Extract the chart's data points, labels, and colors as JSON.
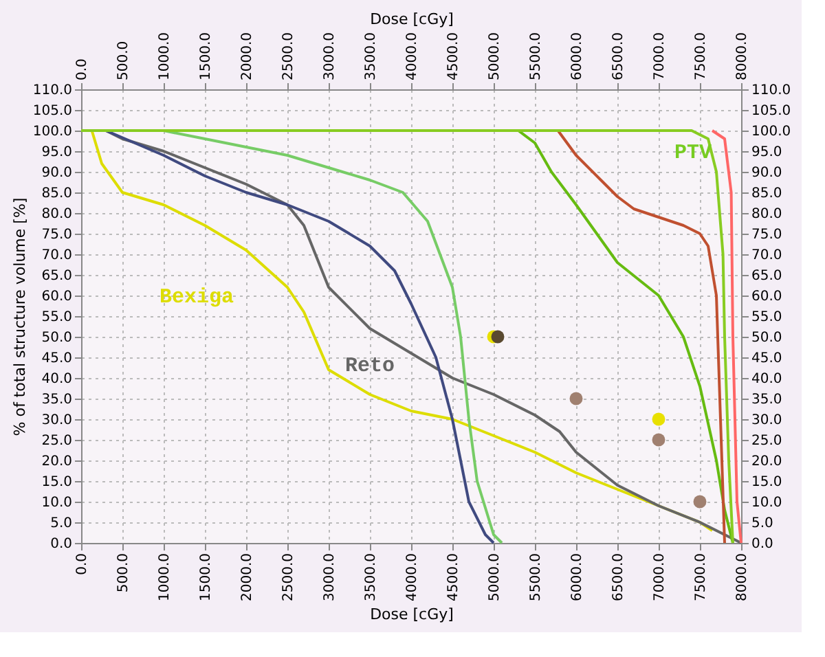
{
  "chart_data": {
    "type": "line",
    "xlabel": "Dose [cGy]",
    "x2label": "Dose [cGy]",
    "ylabel": "% of total structure volume [%]",
    "xlim": [
      0,
      8000
    ],
    "x2lim": [
      0,
      8000
    ],
    "ylim": [
      0,
      110
    ],
    "y2lim": [
      0,
      110
    ],
    "xticks": [
      {
        "value": 0,
        "label": "0.0"
      },
      {
        "value": 500,
        "label": "500.0"
      },
      {
        "value": 1000,
        "label": "1000.0"
      },
      {
        "value": 1500,
        "label": "1500.0"
      },
      {
        "value": 2000,
        "label": "2000.0"
      },
      {
        "value": 2500,
        "label": "2500.0"
      },
      {
        "value": 3000,
        "label": "3000.0"
      },
      {
        "value": 3500,
        "label": "3500.0"
      },
      {
        "value": 4000,
        "label": "4000.0"
      },
      {
        "value": 4500,
        "label": "4500.0"
      },
      {
        "value": 5000,
        "label": "5000.0"
      },
      {
        "value": 5500,
        "label": "5500.0"
      },
      {
        "value": 6000,
        "label": "6000.0"
      },
      {
        "value": 6500,
        "label": "6500.0"
      },
      {
        "value": 7000,
        "label": "7000.0"
      },
      {
        "value": 7500,
        "label": "7500.0"
      },
      {
        "value": 8000,
        "label": "8000.0"
      }
    ],
    "x2ticks": [
      {
        "value": 0,
        "label": "0.0"
      },
      {
        "value": 500,
        "label": "500.0"
      },
      {
        "value": 1000,
        "label": "1000.0"
      },
      {
        "value": 1500,
        "label": "1500.0"
      },
      {
        "value": 2000,
        "label": "2000.0"
      },
      {
        "value": 2500,
        "label": "2500.0"
      },
      {
        "value": 3000,
        "label": "3000.0"
      },
      {
        "value": 3500,
        "label": "3500.0"
      },
      {
        "value": 4000,
        "label": "4000.0"
      },
      {
        "value": 4500,
        "label": "4500.0"
      },
      {
        "value": 5000,
        "label": "5000.0"
      },
      {
        "value": 5500,
        "label": "5500.0"
      },
      {
        "value": 6000,
        "label": "6000.0"
      },
      {
        "value": 6500,
        "label": "6500.0"
      },
      {
        "value": 7000,
        "label": "7000.0"
      },
      {
        "value": 7500,
        "label": "7500.0"
      },
      {
        "value": 8000,
        "label": "8000.0"
      }
    ],
    "yticks": [
      {
        "value": 0,
        "label": "0.0"
      },
      {
        "value": 5,
        "label": "5.0"
      },
      {
        "value": 10,
        "label": "10.0"
      },
      {
        "value": 15,
        "label": "15.0"
      },
      {
        "value": 20,
        "label": "20.0"
      },
      {
        "value": 25,
        "label": "25.0"
      },
      {
        "value": 30,
        "label": "30.0"
      },
      {
        "value": 35,
        "label": "35.0"
      },
      {
        "value": 40,
        "label": "40.0"
      },
      {
        "value": 45,
        "label": "45.0"
      },
      {
        "value": 50,
        "label": "50.0"
      },
      {
        "value": 55,
        "label": "55.0"
      },
      {
        "value": 60,
        "label": "60.0"
      },
      {
        "value": 65,
        "label": "65.0"
      },
      {
        "value": 70,
        "label": "70.0"
      },
      {
        "value": 75,
        "label": "75.0"
      },
      {
        "value": 80,
        "label": "80.0"
      },
      {
        "value": 85,
        "label": "85.0"
      },
      {
        "value": 90,
        "label": "90.0"
      },
      {
        "value": 95,
        "label": "95.0"
      },
      {
        "value": 100,
        "label": "100.0"
      },
      {
        "value": 105,
        "label": "105.0"
      },
      {
        "value": 110,
        "label": "110.0"
      }
    ],
    "y2ticks": [
      {
        "value": 0,
        "label": "0.0"
      },
      {
        "value": 5,
        "label": "5.0"
      },
      {
        "value": 10,
        "label": "10.0"
      },
      {
        "value": 15,
        "label": "15.0"
      },
      {
        "value": 20,
        "label": "20.0"
      },
      {
        "value": 25,
        "label": "25.0"
      },
      {
        "value": 30,
        "label": "30.0"
      },
      {
        "value": 35,
        "label": "35.0"
      },
      {
        "value": 40,
        "label": "40.0"
      },
      {
        "value": 45,
        "label": "45.0"
      },
      {
        "value": 50,
        "label": "50.0"
      },
      {
        "value": 55,
        "label": "55.0"
      },
      {
        "value": 60,
        "label": "60.0"
      },
      {
        "value": 65,
        "label": "65.0"
      },
      {
        "value": 70,
        "label": "70.0"
      },
      {
        "value": 75,
        "label": "75.0"
      },
      {
        "value": 80,
        "label": "80.0"
      },
      {
        "value": 85,
        "label": "85.0"
      },
      {
        "value": 90,
        "label": "90.0"
      },
      {
        "value": 95,
        "label": "95.0"
      },
      {
        "value": 100,
        "label": "100.0"
      },
      {
        "value": 105,
        "label": "105.0"
      },
      {
        "value": 110,
        "label": "110.0"
      }
    ],
    "grid": true,
    "legend": false,
    "marker": "none",
    "line_style": "solid",
    "series": [
      {
        "color": "#dddd00",
        "x": [
          0,
          130,
          250,
          500,
          1000,
          1500,
          2000,
          2500,
          2700,
          3000,
          3500,
          4000,
          4500,
          5000,
          5500,
          6000,
          6500,
          7000,
          7500,
          7650
        ],
        "values": [
          100,
          100,
          92,
          85,
          82,
          77,
          71,
          62,
          56,
          42,
          36,
          32,
          30,
          26,
          22,
          17,
          13,
          9,
          5,
          3
        ]
      },
      {
        "color": "#666666",
        "x": [
          0,
          300,
          500,
          1000,
          1500,
          2000,
          2500,
          2700,
          3000,
          3500,
          4000,
          4500,
          5000,
          5500,
          5800,
          6000,
          6500,
          7000,
          7500,
          8000
        ],
        "values": [
          100,
          100,
          98,
          95,
          91,
          87,
          82,
          77,
          62,
          52,
          46,
          40,
          36,
          31,
          27,
          22,
          14,
          9,
          5,
          0
        ]
      },
      {
        "color": "#404a80",
        "x": [
          0,
          300,
          1000,
          1500,
          2000,
          2500,
          3000,
          3500,
          3800,
          4000,
          4300,
          4500,
          4700,
          4900,
          5000
        ],
        "values": [
          100,
          100,
          94,
          89,
          85,
          82,
          78,
          72,
          66,
          58,
          45,
          30,
          10,
          2,
          0
        ]
      },
      {
        "color": "#77cc66",
        "x": [
          0,
          1000,
          1500,
          2000,
          2500,
          3000,
          3500,
          3900,
          4200,
          4500,
          4600,
          4700,
          4800,
          5000,
          5100
        ],
        "values": [
          100,
          100,
          98,
          96,
          94,
          91,
          88,
          85,
          78,
          62,
          50,
          30,
          15,
          2,
          0
        ]
      },
      {
        "color": "#66bb11",
        "x": [
          0,
          5300,
          5500,
          5700,
          6000,
          6500,
          7000,
          7300,
          7500,
          7700,
          7800,
          7900
        ],
        "values": [
          100,
          100,
          97,
          90,
          82,
          68,
          60,
          50,
          38,
          20,
          8,
          0
        ]
      },
      {
        "color": "#c05030",
        "x": [
          5780,
          6000,
          6300,
          6500,
          6700,
          7000,
          7300,
          7500,
          7600,
          7700,
          7750,
          7800
        ],
        "values": [
          100,
          94,
          88,
          84,
          81,
          79,
          77,
          75,
          72,
          60,
          30,
          0
        ]
      },
      {
        "color": "#ff6666",
        "x": [
          7650,
          7800,
          7880,
          7900,
          7950,
          8000
        ],
        "values": [
          100,
          98,
          85,
          50,
          10,
          0
        ]
      },
      {
        "color": "#88cc22",
        "x": [
          0,
          7400,
          7600,
          7700,
          7780,
          7800,
          7850,
          7900
        ],
        "values": [
          100,
          100,
          98,
          90,
          70,
          50,
          20,
          0
        ]
      },
      {
        "type": "scatter",
        "axis": "y2",
        "marker": "circle",
        "x": [
          5000,
          5050,
          6000,
          7000,
          7000,
          7500
        ],
        "values": [
          50,
          50,
          35,
          30,
          25,
          10
        ],
        "colors": [
          "#e8e000",
          "#5a4a30",
          "#a08070",
          "#e8e000",
          "#a08070",
          "#a08070"
        ]
      }
    ],
    "annotations": [
      "Bexiga",
      "Reto",
      "PTV"
    ]
  }
}
